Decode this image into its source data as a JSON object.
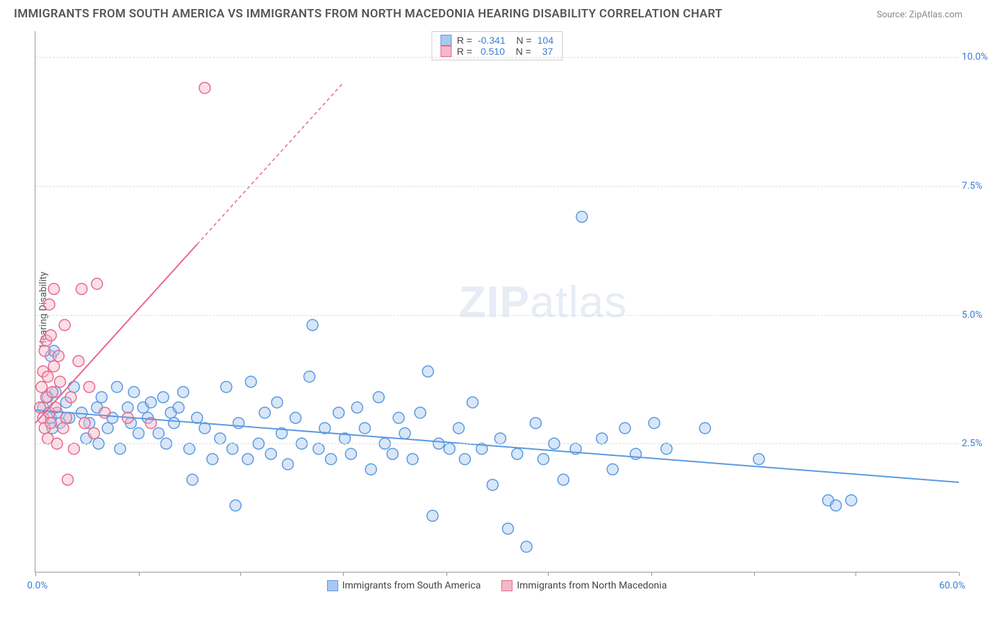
{
  "title": "IMMIGRANTS FROM SOUTH AMERICA VS IMMIGRANTS FROM NORTH MACEDONIA HEARING DISABILITY CORRELATION CHART",
  "source": "Source: ZipAtlas.com",
  "watermark_bold": "ZIP",
  "watermark_light": "atlas",
  "y_axis_label": "Hearing Disability",
  "chart": {
    "type": "scatter",
    "background_color": "#ffffff",
    "grid_color": "#dddddd",
    "axis_color": "#999999",
    "tick_label_color": "#3b7dd8",
    "xlim": [
      0,
      60
    ],
    "ylim": [
      0,
      10.5
    ],
    "y_ticks": [
      2.5,
      5.0,
      7.5,
      10.0
    ],
    "y_tick_labels": [
      "2.5%",
      "5.0%",
      "7.5%",
      "10.0%"
    ],
    "x_ticks": [
      0,
      6.7,
      13.3,
      20,
      26.7,
      33.3,
      40,
      46.7,
      53.3,
      60
    ],
    "x_origin_label": "0.0%",
    "x_max_label": "60.0%",
    "marker_radius": 8,
    "marker_opacity": 0.45,
    "line_width": 2
  },
  "series": [
    {
      "key": "south_america",
      "label": "Immigrants from South America",
      "fill_color": "#a8c8ef",
      "stroke_color": "#5a99e0",
      "R": "-0.341",
      "N": "104",
      "trend": {
        "x1": 0,
        "y1": 3.15,
        "x2": 60,
        "y2": 1.75,
        "dash_from_x": null
      },
      "points": [
        [
          0.5,
          3.2
        ],
        [
          0.8,
          3.4
        ],
        [
          1.0,
          4.2
        ],
        [
          1.0,
          3.0
        ],
        [
          1.1,
          2.8
        ],
        [
          1.2,
          4.3
        ],
        [
          1.3,
          3.5
        ],
        [
          1.4,
          3.1
        ],
        [
          1.6,
          2.9
        ],
        [
          2.0,
          3.3
        ],
        [
          2.2,
          3.0
        ],
        [
          2.5,
          3.6
        ],
        [
          3.0,
          3.1
        ],
        [
          3.3,
          2.6
        ],
        [
          3.5,
          2.9
        ],
        [
          4.0,
          3.2
        ],
        [
          4.1,
          2.5
        ],
        [
          4.3,
          3.4
        ],
        [
          4.7,
          2.8
        ],
        [
          5.0,
          3.0
        ],
        [
          5.3,
          3.6
        ],
        [
          5.5,
          2.4
        ],
        [
          6.0,
          3.2
        ],
        [
          6.2,
          2.9
        ],
        [
          6.4,
          3.5
        ],
        [
          6.7,
          2.7
        ],
        [
          7.0,
          3.2
        ],
        [
          7.3,
          3.0
        ],
        [
          7.5,
          3.3
        ],
        [
          8.0,
          2.7
        ],
        [
          8.3,
          3.4
        ],
        [
          8.5,
          2.5
        ],
        [
          8.8,
          3.1
        ],
        [
          9.0,
          2.9
        ],
        [
          9.3,
          3.2
        ],
        [
          9.6,
          3.5
        ],
        [
          10.0,
          2.4
        ],
        [
          10.2,
          1.8
        ],
        [
          10.5,
          3.0
        ],
        [
          11.0,
          2.8
        ],
        [
          11.5,
          2.2
        ],
        [
          12.0,
          2.6
        ],
        [
          12.4,
          3.6
        ],
        [
          12.8,
          2.4
        ],
        [
          13.0,
          1.3
        ],
        [
          13.2,
          2.9
        ],
        [
          13.8,
          2.2
        ],
        [
          14.0,
          3.7
        ],
        [
          14.5,
          2.5
        ],
        [
          14.9,
          3.1
        ],
        [
          15.3,
          2.3
        ],
        [
          15.7,
          3.3
        ],
        [
          16.0,
          2.7
        ],
        [
          16.4,
          2.1
        ],
        [
          16.9,
          3.0
        ],
        [
          17.3,
          2.5
        ],
        [
          17.8,
          3.8
        ],
        [
          18.0,
          4.8
        ],
        [
          18.4,
          2.4
        ],
        [
          18.8,
          2.8
        ],
        [
          19.2,
          2.2
        ],
        [
          19.7,
          3.1
        ],
        [
          20.1,
          2.6
        ],
        [
          20.5,
          2.3
        ],
        [
          20.9,
          3.2
        ],
        [
          21.4,
          2.8
        ],
        [
          21.8,
          2.0
        ],
        [
          22.3,
          3.4
        ],
        [
          22.7,
          2.5
        ],
        [
          23.2,
          2.3
        ],
        [
          23.6,
          3.0
        ],
        [
          24.0,
          2.7
        ],
        [
          24.5,
          2.2
        ],
        [
          25.0,
          3.1
        ],
        [
          25.5,
          3.9
        ],
        [
          25.8,
          1.1
        ],
        [
          26.2,
          2.5
        ],
        [
          26.9,
          2.4
        ],
        [
          27.5,
          2.8
        ],
        [
          27.9,
          2.2
        ],
        [
          28.4,
          3.3
        ],
        [
          29.0,
          2.4
        ],
        [
          29.7,
          1.7
        ],
        [
          30.2,
          2.6
        ],
        [
          30.7,
          0.85
        ],
        [
          31.3,
          2.3
        ],
        [
          31.9,
          0.5
        ],
        [
          32.5,
          2.9
        ],
        [
          33.0,
          2.2
        ],
        [
          33.7,
          2.5
        ],
        [
          34.3,
          1.8
        ],
        [
          35.1,
          2.4
        ],
        [
          35.5,
          6.9
        ],
        [
          36.8,
          2.6
        ],
        [
          37.5,
          2.0
        ],
        [
          38.3,
          2.8
        ],
        [
          39.0,
          2.3
        ],
        [
          40.2,
          2.9
        ],
        [
          41.0,
          2.4
        ],
        [
          43.5,
          2.8
        ],
        [
          47.0,
          2.2
        ],
        [
          51.5,
          1.4
        ],
        [
          52.0,
          1.3
        ],
        [
          53.0,
          1.4
        ]
      ]
    },
    {
      "key": "north_macedonia",
      "label": "Immigrants from North Macedonia",
      "fill_color": "#f5b8c8",
      "stroke_color": "#e8678d",
      "R": "0.510",
      "N": "37",
      "trend": {
        "x1": 0,
        "y1": 2.9,
        "x2": 20,
        "y2": 9.5,
        "dash_from_x": 10.5
      },
      "points": [
        [
          0.3,
          3.2
        ],
        [
          0.4,
          3.6
        ],
        [
          0.5,
          3.0
        ],
        [
          0.5,
          3.9
        ],
        [
          0.6,
          2.8
        ],
        [
          0.6,
          4.3
        ],
        [
          0.7,
          3.4
        ],
        [
          0.7,
          4.5
        ],
        [
          0.8,
          2.6
        ],
        [
          0.8,
          3.8
        ],
        [
          0.9,
          3.1
        ],
        [
          0.9,
          5.2
        ],
        [
          1.0,
          2.9
        ],
        [
          1.0,
          4.6
        ],
        [
          1.1,
          3.5
        ],
        [
          1.2,
          4.0
        ],
        [
          1.2,
          5.5
        ],
        [
          1.3,
          3.2
        ],
        [
          1.4,
          2.5
        ],
        [
          1.5,
          4.2
        ],
        [
          1.6,
          3.7
        ],
        [
          1.8,
          2.8
        ],
        [
          1.9,
          4.8
        ],
        [
          2.0,
          3.0
        ],
        [
          2.1,
          1.8
        ],
        [
          2.3,
          3.4
        ],
        [
          2.5,
          2.4
        ],
        [
          2.8,
          4.1
        ],
        [
          3.0,
          5.5
        ],
        [
          3.2,
          2.9
        ],
        [
          3.5,
          3.6
        ],
        [
          3.8,
          2.7
        ],
        [
          4.0,
          5.6
        ],
        [
          4.5,
          3.1
        ],
        [
          6.0,
          3.0
        ],
        [
          7.5,
          2.9
        ],
        [
          11.0,
          9.4
        ]
      ]
    }
  ],
  "stats_box": {
    "rows": [
      {
        "swatch_fill": "#a8c8ef",
        "swatch_stroke": "#5a99e0",
        "r_label": "R =",
        "r_val": "-0.341",
        "n_label": "N =",
        "n_val": "104"
      },
      {
        "swatch_fill": "#f5b8c8",
        "swatch_stroke": "#e8678d",
        "r_label": "R =",
        "r_val": " 0.510",
        "n_label": "N =",
        "n_val": "  37"
      }
    ]
  }
}
